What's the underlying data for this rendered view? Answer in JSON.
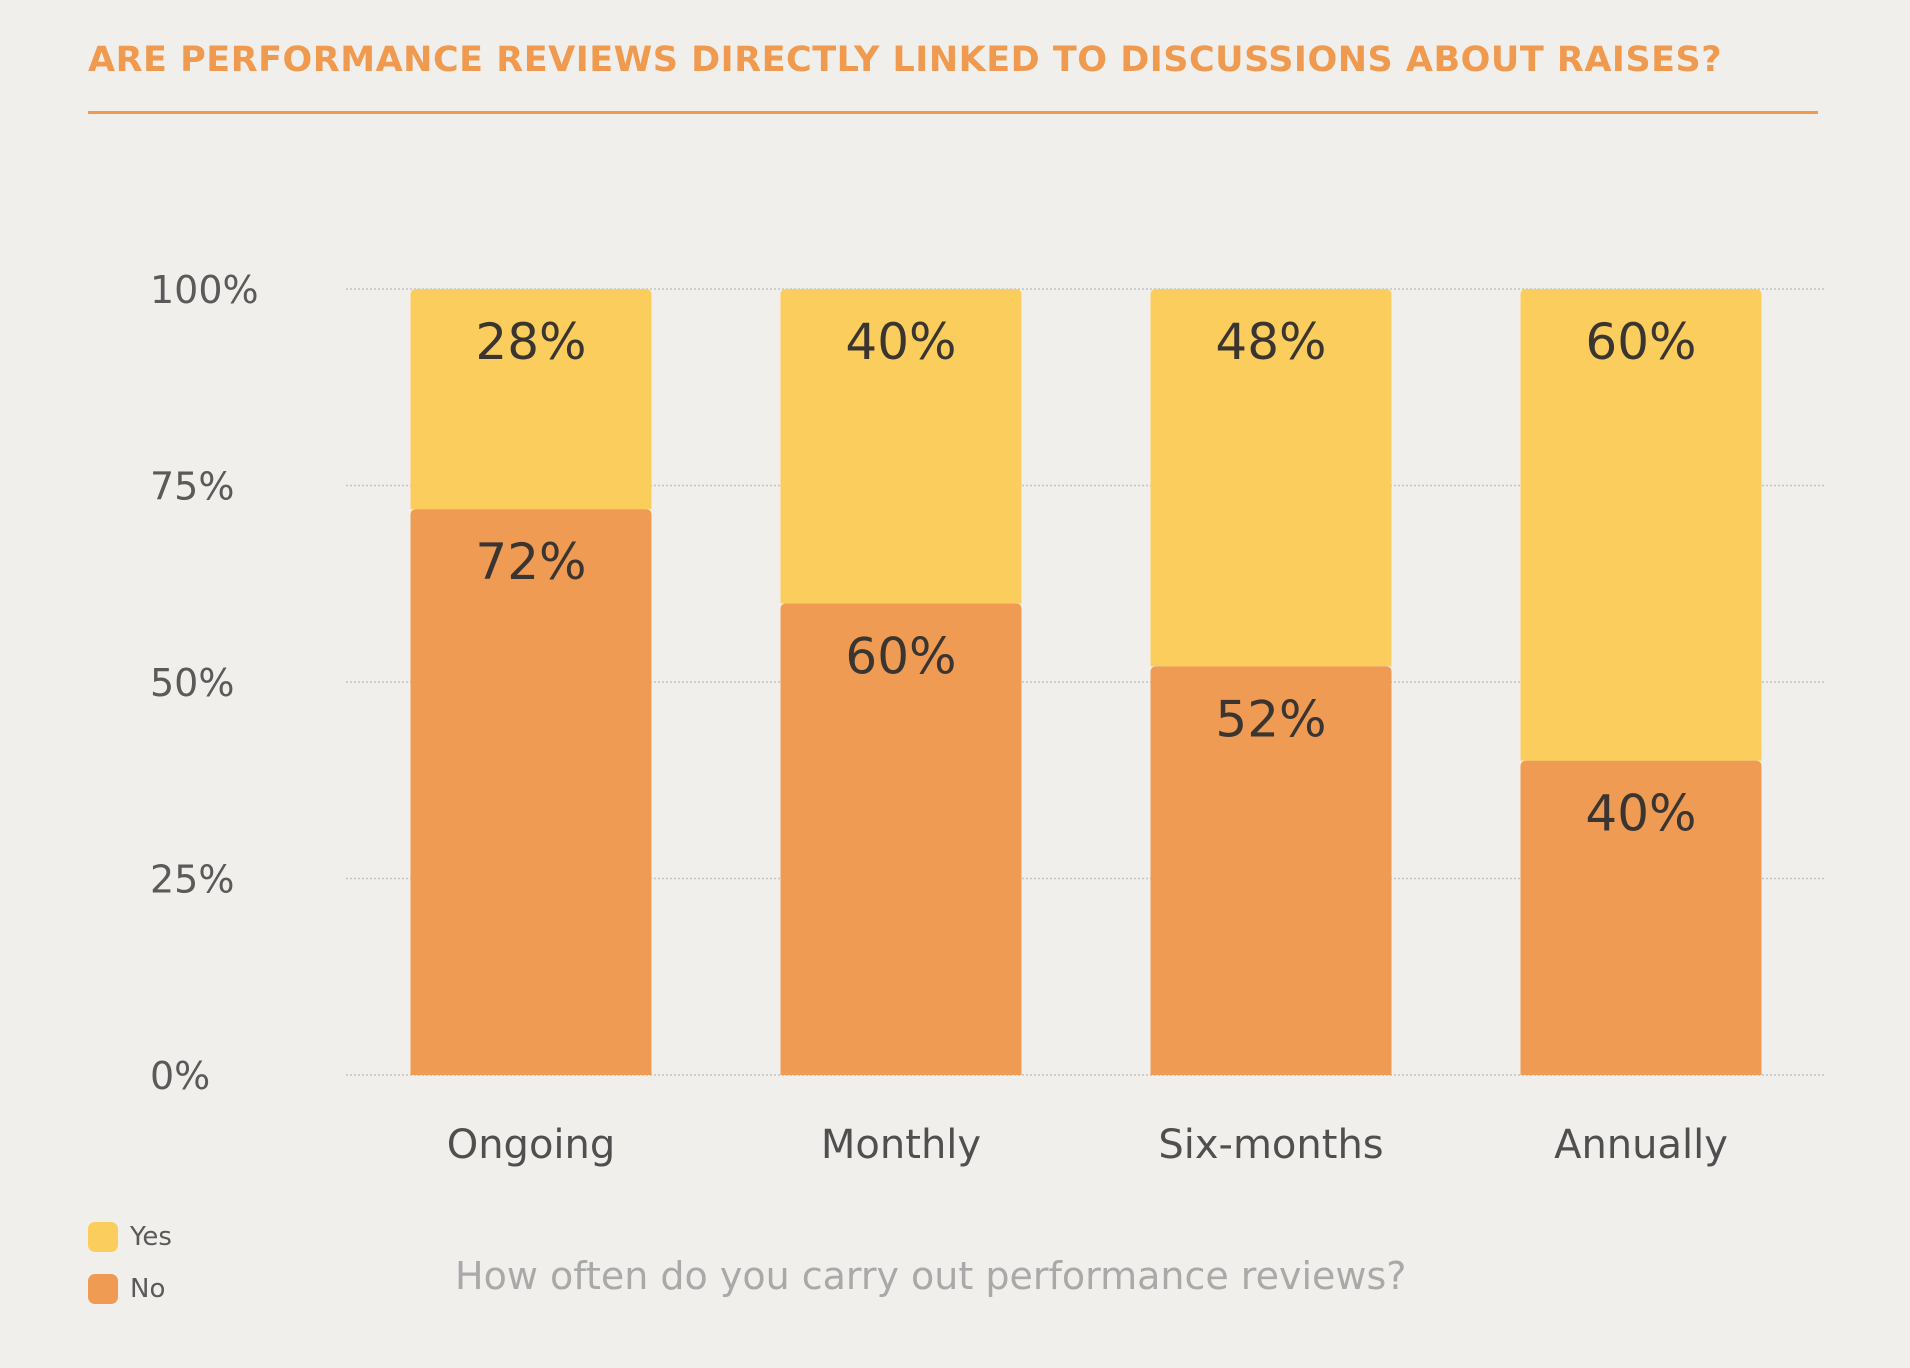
{
  "chart_data": {
    "type": "bar",
    "stacked": true,
    "title": "ARE PERFORMANCE REVIEWS DIRECTLY LINKED TO DISCUSSIONS ABOUT RAISES?",
    "xlabel": "How often do you carry out performance reviews?",
    "ylabel": "",
    "ylim": [
      0,
      100
    ],
    "yticks": [
      "0%",
      "25%",
      "50%",
      "75%",
      "100%"
    ],
    "ytick_values": [
      0,
      25,
      50,
      75,
      100
    ],
    "categories": [
      "Ongoing",
      "Monthly",
      "Six-months",
      "Annually"
    ],
    "series": [
      {
        "name": "No",
        "color": "#ef9b53",
        "values": [
          72,
          60,
          52,
          40
        ],
        "labels": [
          "72%",
          "60%",
          "52%",
          "40%"
        ]
      },
      {
        "name": "Yes",
        "color": "#fbcd5c",
        "values": [
          28,
          40,
          48,
          60
        ],
        "labels": [
          "28%",
          "40%",
          "48%",
          "60%"
        ]
      }
    ],
    "grid": true,
    "legend": "bottom-left"
  },
  "legend": {
    "yes": "Yes",
    "no": "No",
    "yes_color": "#fbcd5c",
    "no_color": "#ef9b53"
  }
}
